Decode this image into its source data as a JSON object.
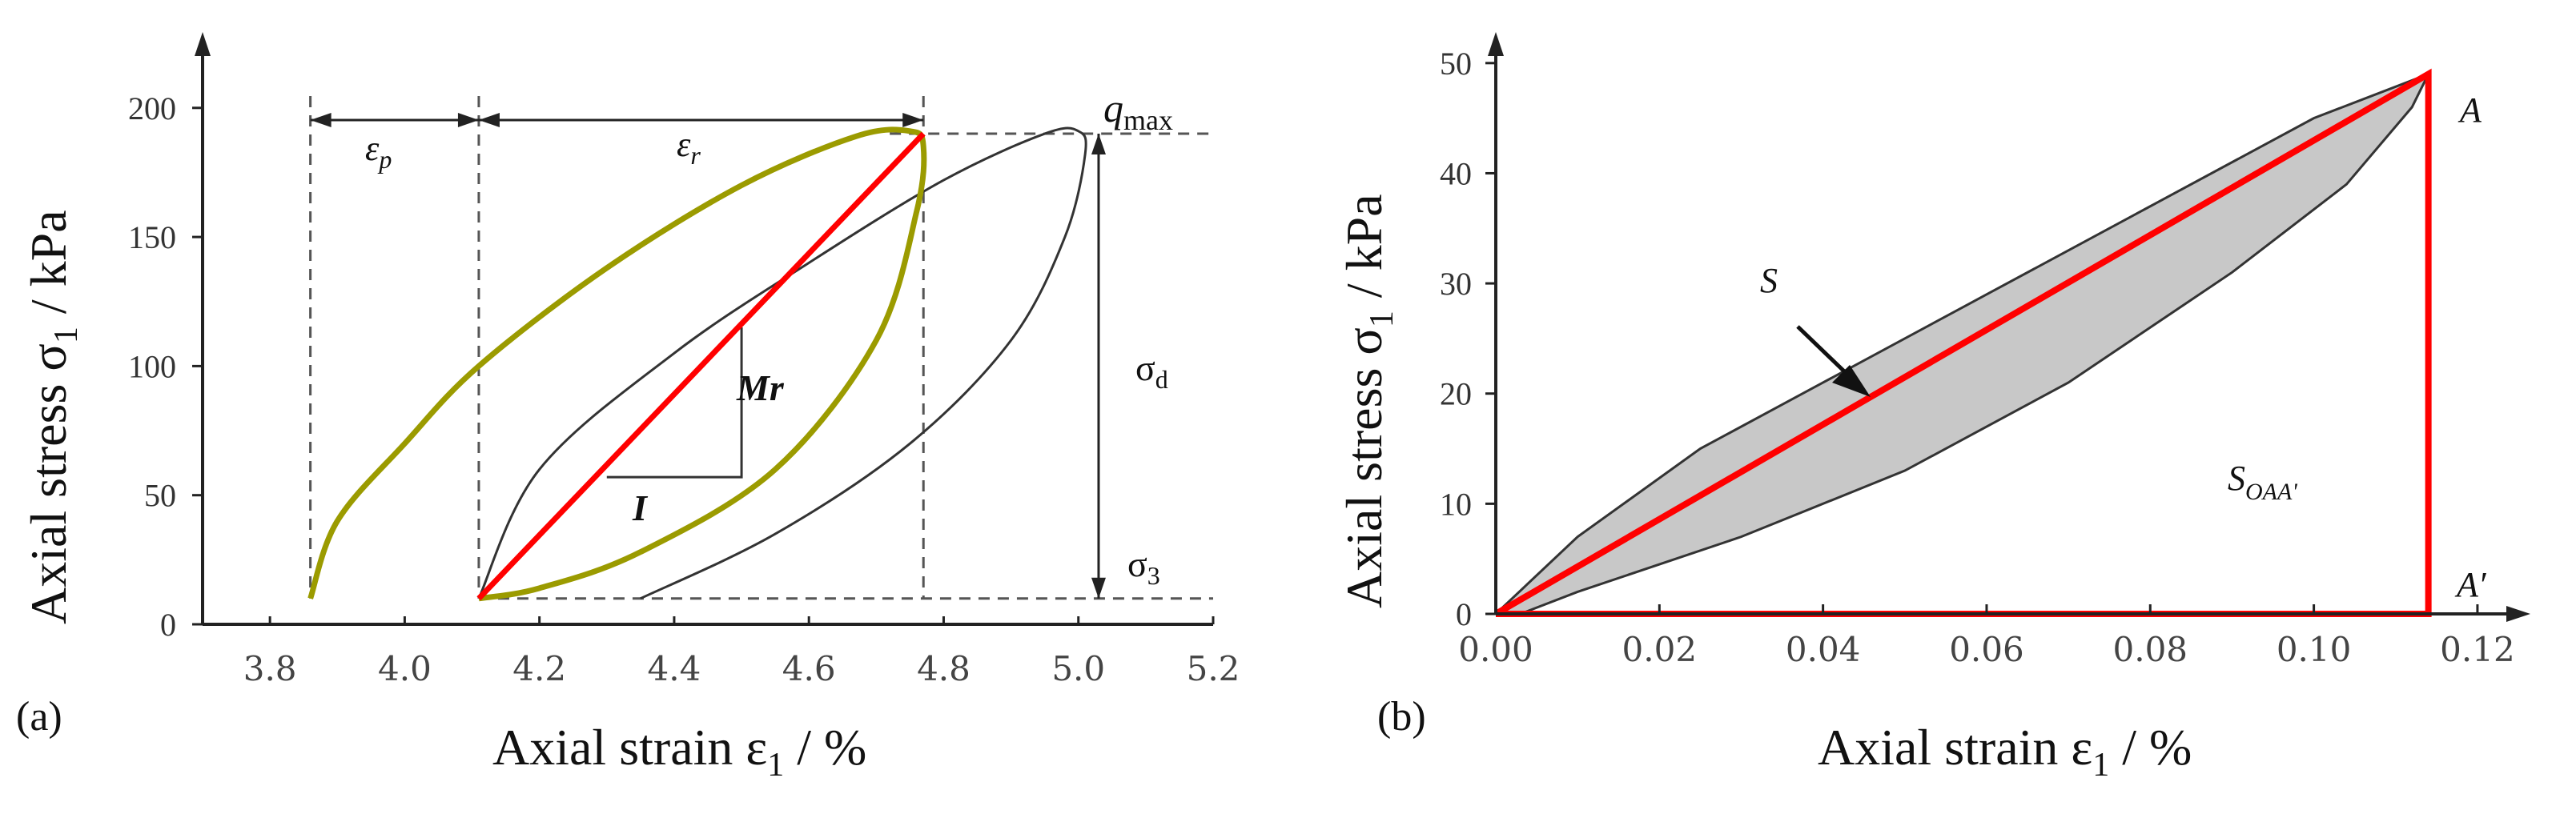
{
  "panel_a": {
    "label": "(a)",
    "xlabel_pre": "Axial strain ε",
    "xlabel_sub": "1",
    "xlabel_post": " / %",
    "ylabel_pre": "Axial stress σ",
    "ylabel_sub": "1",
    "ylabel_post": " / kPa",
    "ann": {
      "eps_p": "ε",
      "eps_p_sub": "p",
      "eps_r": "ε",
      "eps_r_sub": "r",
      "qmax": "q",
      "qmax_sub": "max",
      "sigma_d": "σ",
      "sigma_d_sub": "d",
      "sigma_3": "σ",
      "sigma_3_sub": "3",
      "mr": "Mr",
      "one": "I"
    }
  },
  "panel_b": {
    "label": "(b)",
    "xlabel_pre": "Axial strain ε",
    "xlabel_sub": "1",
    "xlabel_post": " / %",
    "ylabel_pre": "Axial stress σ",
    "ylabel_sub": "1",
    "ylabel_post": " / kPa",
    "ann": {
      "S": "S",
      "A": "A",
      "Aprime": "A′",
      "soaa": "S",
      "soaa_sub": "OAA'"
    }
  },
  "colors": {
    "olive": "#9b9b00",
    "red": "#ff0000",
    "gray_fill": "#c8c8c8",
    "axis": "#222222",
    "dash": "#555555"
  },
  "chart_data": [
    {
      "type": "line",
      "panel": "a",
      "xlim": [
        3.7,
        5.2
      ],
      "ylim": [
        0,
        230
      ],
      "xticks": [
        3.8,
        4.0,
        4.2,
        4.4,
        4.6,
        4.8,
        5.0,
        5.2
      ],
      "xtick_labels": [
        "3.8",
        "4.0",
        "4.2",
        "4.4",
        "4.6",
        "4.8",
        "5.0",
        "5.2"
      ],
      "yticks": [
        0,
        50,
        100,
        150,
        200
      ],
      "ytick_labels": [
        "0",
        "50",
        "100",
        "150",
        "200"
      ],
      "series": [
        {
          "name": "first-cycle-olive",
          "x": [
            3.86,
            3.9,
            4.0,
            4.11,
            4.3,
            4.5,
            4.67,
            4.75,
            4.77,
            4.76,
            4.7,
            4.55,
            4.35,
            4.2,
            4.11
          ],
          "y": [
            10,
            40,
            70,
            100,
            138,
            170,
            189,
            191,
            185,
            160,
            110,
            60,
            28,
            14,
            10
          ]
        },
        {
          "name": "later-cycle-black",
          "x": [
            4.11,
            4.2,
            4.4,
            4.6,
            4.8,
            4.95,
            5.0,
            5.01,
            4.98,
            4.9,
            4.75,
            4.55,
            4.35
          ],
          "y": [
            10,
            60,
            105,
            140,
            172,
            190,
            191,
            182,
            150,
            110,
            70,
            35,
            10
          ]
        },
        {
          "name": "resilient-modulus-red",
          "x": [
            4.11,
            4.77
          ],
          "y": [
            10,
            190
          ]
        }
      ],
      "reference_lines": {
        "v_dashed_x": [
          3.86,
          4.11,
          4.77
        ],
        "h_dashed_y": [
          190,
          10
        ],
        "v_arrow_x": 5.03,
        "triangle": {
          "x0": 4.3,
          "x1": 4.5,
          "y0": 57,
          "y1": 115
        }
      }
    },
    {
      "type": "area",
      "panel": "b",
      "xlim": [
        0,
        0.125
      ],
      "ylim": [
        0,
        55
      ],
      "xticks": [
        0.0,
        0.02,
        0.04,
        0.06,
        0.08,
        0.1,
        0.12
      ],
      "xtick_labels": [
        "0.00",
        "0.02",
        "0.04",
        "0.06",
        "0.08",
        "0.10",
        "0.12"
      ],
      "yticks": [
        0,
        10,
        20,
        30,
        40,
        50
      ],
      "ytick_labels": [
        "0",
        "10",
        "20",
        "30",
        "40",
        "50"
      ],
      "series": [
        {
          "name": "loading-upper",
          "x": [
            0.0,
            0.01,
            0.025,
            0.04,
            0.06,
            0.08,
            0.1,
            0.114
          ],
          "y": [
            0,
            7,
            15,
            21,
            29,
            37,
            45,
            49
          ]
        },
        {
          "name": "unloading-lower",
          "x": [
            0.114,
            0.112,
            0.104,
            0.09,
            0.07,
            0.05,
            0.03,
            0.01,
            0.003,
            0.0
          ],
          "y": [
            49,
            46,
            39,
            31,
            21,
            13,
            7,
            2,
            0,
            0
          ]
        },
        {
          "name": "triangle-OAA'",
          "x": [
            0.0,
            0.114,
            0.114,
            0.0
          ],
          "y": [
            0,
            49,
            0,
            0
          ]
        }
      ]
    }
  ]
}
